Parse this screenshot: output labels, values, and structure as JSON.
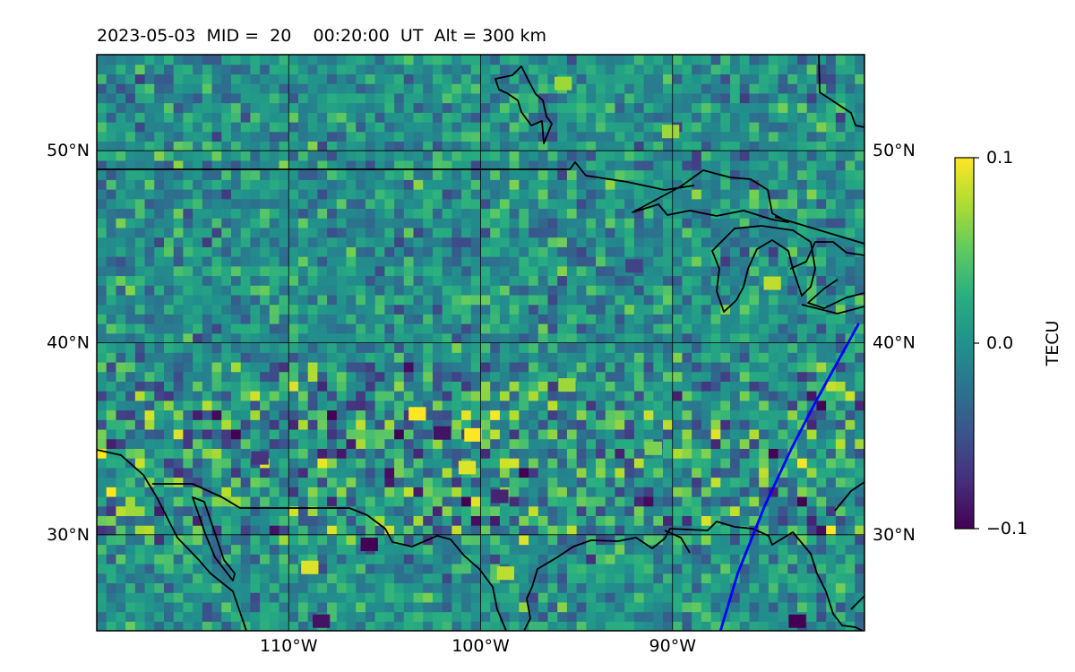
{
  "title": "2023-05-03  MID =  20    00:20:00  UT  Alt = 300 km",
  "chart_data": {
    "type": "heatmap",
    "title": "2023-05-03  MID =  20    00:20:00  UT  Alt = 300 km",
    "xlim": [
      -120,
      -80
    ],
    "ylim": [
      25,
      55
    ],
    "x_ticks": [
      {
        "value": -110,
        "label": "110°W"
      },
      {
        "value": -100,
        "label": "100°W"
      },
      {
        "value": -90,
        "label": "90°W"
      }
    ],
    "y_ticks": [
      {
        "value": 30,
        "label": "30°N"
      },
      {
        "value": 40,
        "label": "40°N"
      },
      {
        "value": 50,
        "label": "50°N"
      }
    ],
    "grid": true,
    "colormap": "viridis",
    "colorbar": {
      "label": "TECU",
      "min": -0.1,
      "max": 0.1,
      "ticks": [
        {
          "value": 0.1,
          "label": "0.1"
        },
        {
          "value": 0.0,
          "label": "0.0"
        },
        {
          "value": -0.1,
          "label": "−0.1"
        }
      ]
    },
    "field_description": "Near-zero TEC perturbation field with scattered small positive (yellow) and negative (purple) cells, strongest variability around 30–38°N.",
    "hotspots": [
      {
        "lon": -103.3,
        "lat": 36.3,
        "value": 0.1
      },
      {
        "lon": -100.4,
        "lat": 35.2,
        "value": 0.1
      },
      {
        "lon": -100.7,
        "lat": 33.5,
        "value": 0.09
      },
      {
        "lon": -108.9,
        "lat": 28.3,
        "value": 0.09
      },
      {
        "lon": -98.7,
        "lat": 28.0,
        "value": 0.08
      },
      {
        "lon": -84.8,
        "lat": 43.1,
        "value": 0.08
      },
      {
        "lon": -90.1,
        "lat": 51.0,
        "value": 0.07
      },
      {
        "lon": -95.7,
        "lat": 53.5,
        "value": 0.07
      },
      {
        "lon": -95.5,
        "lat": 37.8,
        "value": 0.07
      },
      {
        "lon": -91.0,
        "lat": 34.5,
        "value": 0.06
      },
      {
        "lon": -105.8,
        "lat": 29.5,
        "value": -0.1
      },
      {
        "lon": -102.0,
        "lat": 35.3,
        "value": -0.09
      },
      {
        "lon": -83.5,
        "lat": 25.5,
        "value": -0.1
      },
      {
        "lon": -108.3,
        "lat": 25.5,
        "value": -0.09
      },
      {
        "lon": -99.0,
        "lat": 32.0,
        "value": -0.08
      },
      {
        "lon": -111.5,
        "lat": 34.0,
        "value": -0.07
      },
      {
        "lon": -92.0,
        "lat": 44.0,
        "value": -0.06
      }
    ],
    "overlays": [
      {
        "type": "line",
        "color": "#0000ff",
        "points": [
          [
            -87.5,
            25.0
          ],
          [
            -86.6,
            28.0
          ],
          [
            -85.2,
            31.5
          ],
          [
            -83.8,
            34.5
          ],
          [
            -82.5,
            37.0
          ],
          [
            -80.3,
            41.0
          ]
        ]
      }
    ]
  }
}
